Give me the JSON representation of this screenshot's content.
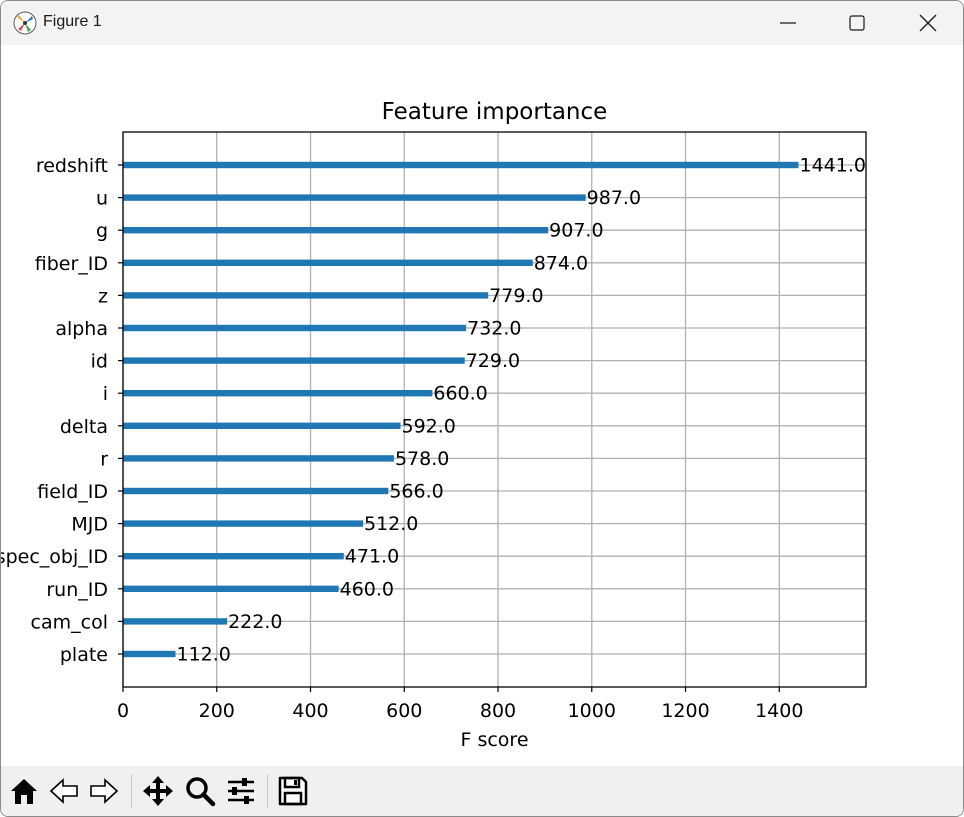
{
  "window": {
    "title": "Figure 1",
    "app_icon": "matplotlib-logo-icon",
    "controls": [
      "minimize-icon",
      "maximize-icon",
      "close-icon"
    ]
  },
  "toolbar": {
    "tools": [
      "home-icon",
      "back-arrow-icon",
      "forward-arrow-icon",
      "pan-move-icon",
      "zoom-magnifier-icon",
      "configure-subplots-icon",
      "save-floppy-icon"
    ]
  },
  "colors": {
    "bar": "#1f77b4",
    "grid": "#b0b0b0",
    "axes": "#000000"
  },
  "chart_data": {
    "type": "bar",
    "orientation": "horizontal",
    "title": "Feature importance",
    "xlabel": "F score",
    "ylabel": "",
    "xlim": [
      0,
      1585
    ],
    "xticks": [
      0,
      200,
      400,
      600,
      800,
      1000,
      1200,
      1400
    ],
    "grid": true,
    "categories": [
      "redshift",
      "u",
      "g",
      "fiber_ID",
      "z",
      "alpha",
      "id",
      "i",
      "delta",
      "r",
      "field_ID",
      "MJD",
      "spec_obj_ID",
      "run_ID",
      "cam_col",
      "plate"
    ],
    "values": [
      1441,
      987,
      907,
      874,
      779,
      732,
      729,
      660,
      592,
      578,
      566,
      512,
      471,
      460,
      222,
      112
    ],
    "value_labels": [
      "1441.0",
      "987.0",
      "907.0",
      "874.0",
      "779.0",
      "732.0",
      "729.0",
      "660.0",
      "592.0",
      "578.0",
      "566.0",
      "512.0",
      "471.0",
      "460.0",
      "222.0",
      "112.0"
    ]
  }
}
